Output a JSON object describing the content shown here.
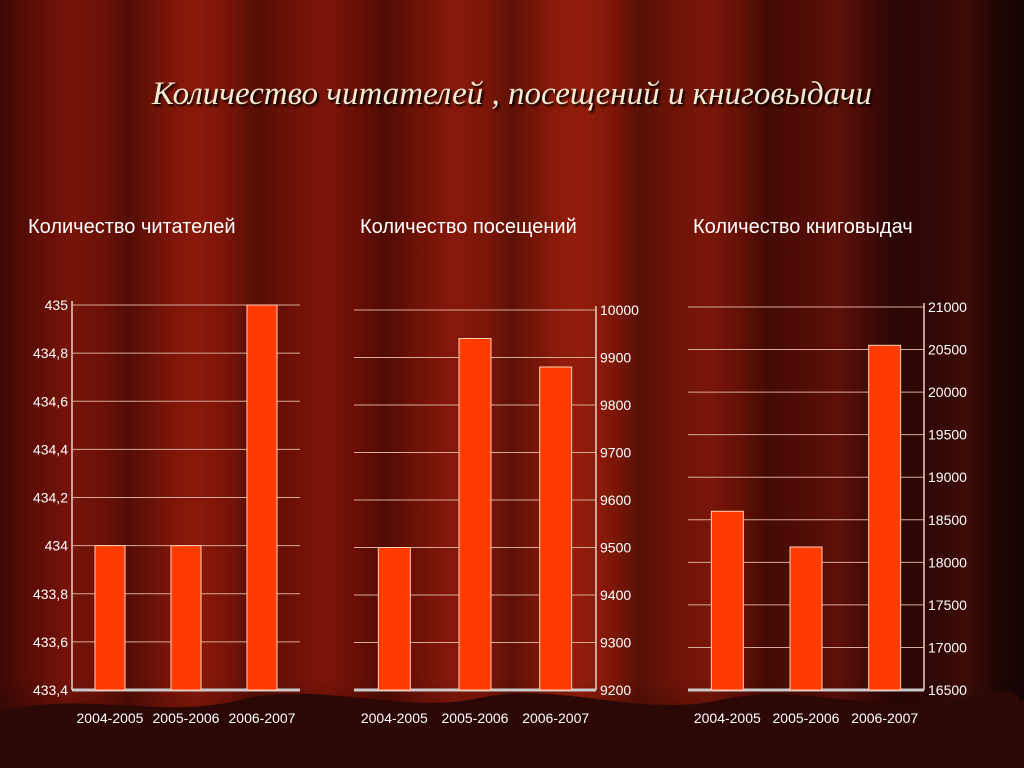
{
  "title": "Количество читателей , посещений и книговыдачи",
  "colors": {
    "bar": "#ff3b00",
    "bar_edge": "#ffd0b8",
    "grid": "#d8a898",
    "axis": "#e8d0c8"
  },
  "chart_data": [
    {
      "type": "bar",
      "title": "Количество читателей",
      "categories": [
        "2004-2005",
        "2005-2006",
        "2006-2007"
      ],
      "values": [
        434,
        434,
        435
      ],
      "ylim": [
        433.4,
        435
      ],
      "yticks": [
        "435",
        "434,8",
        "434,6",
        "434,4",
        "434,2",
        "434",
        "433,8",
        "433,6",
        "433,4"
      ],
      "y_axis_side": "left",
      "grid": true
    },
    {
      "type": "bar",
      "title": "Количество посещений",
      "categories": [
        "2004-2005",
        "2005-2006",
        "2006-2007"
      ],
      "values": [
        9500,
        9940,
        9880
      ],
      "ylim": [
        9200,
        10000
      ],
      "yticks": [
        "10000",
        "9900",
        "9800",
        "9700",
        "9600",
        "9500",
        "9400",
        "9300",
        "9200"
      ],
      "y_axis_side": "right",
      "grid": true
    },
    {
      "type": "bar",
      "title": "Количество книговыдач",
      "categories": [
        "2004-2005",
        "2005-2006",
        "2006-2007"
      ],
      "values": [
        18600,
        18180,
        20550
      ],
      "ylim": [
        16500,
        21000
      ],
      "yticks": [
        "21000",
        "20500",
        "20000",
        "19500",
        "19000",
        "18500",
        "18000",
        "17500",
        "17000",
        "16500"
      ],
      "y_axis_side": "right",
      "grid": true
    }
  ]
}
